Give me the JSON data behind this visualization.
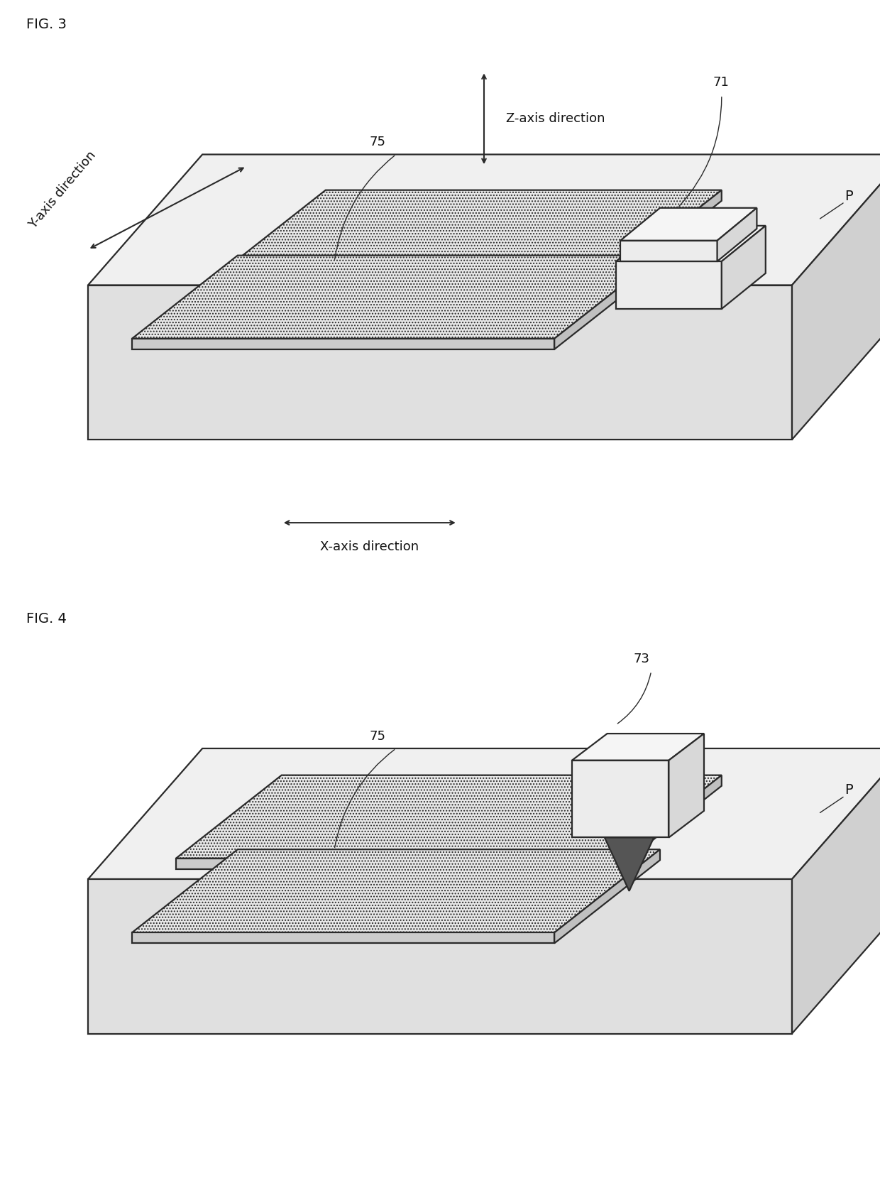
{
  "fig_label1": "FIG. 3",
  "fig_label2": "FIG. 4",
  "label_71": "71",
  "label_73": "73",
  "label_75_1": "75",
  "label_75_2": "75",
  "label_P1": "P",
  "label_P2": "P",
  "z_axis_label": "Z-axis direction",
  "y_axis_label": "Y-axis direction",
  "x_axis_label": "X-axis direction",
  "bg_color": "#ffffff",
  "text_color": "#111111",
  "edge_color": "#2a2a2a",
  "platform_top_color": "#f0f0f0",
  "platform_front_color": "#e0e0e0",
  "platform_right_color": "#d0d0d0",
  "tray_top_color": "#e8e8e8",
  "tray_front_color": "#cccccc",
  "tray_right_color": "#c0c0c0",
  "box_top_color": "#f5f5f5",
  "box_front_color": "#ececec",
  "box_right_color": "#d8d8d8",
  "cone_color": "#555555",
  "font_size_fig": 14,
  "font_size_label": 13,
  "font_size_number": 13
}
